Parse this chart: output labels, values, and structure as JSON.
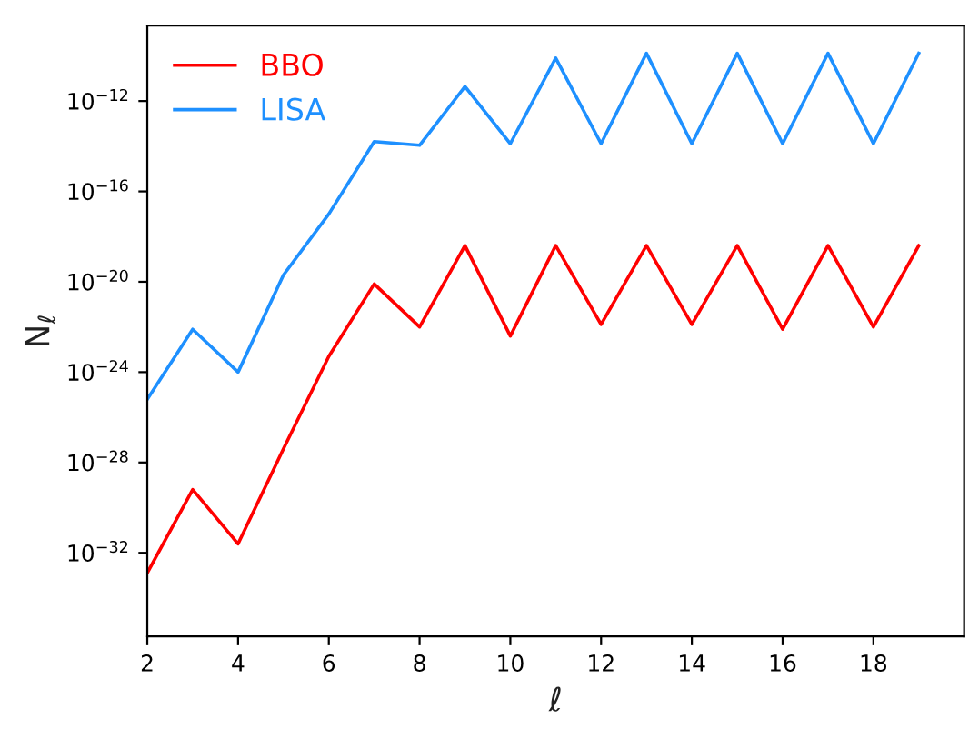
{
  "chart_data": {
    "type": "line",
    "xlabel": "ℓ",
    "ylabel": "N$_{ℓ}$",
    "x": [
      2,
      3,
      4,
      5,
      6,
      7,
      8,
      9,
      10,
      11,
      12,
      13,
      14,
      15,
      16,
      17,
      18,
      19
    ],
    "series": [
      {
        "name": "BBO",
        "color": "#ff0000",
        "values": [
          1.3e-33,
          6.3e-30,
          2.5e-32,
          4e-28,
          5e-24,
          8e-21,
          1e-22,
          4e-19,
          4e-23,
          4e-19,
          1.3e-22,
          4e-19,
          1.3e-22,
          4e-19,
          8e-23,
          4e-19,
          1e-22,
          4e-19
        ]
      },
      {
        "name": "LISA",
        "color": "#1e90ff",
        "values": [
          6.3e-26,
          7.9e-23,
          1e-24,
          2e-20,
          1e-17,
          1.6e-14,
          1.1e-14,
          4.4e-12,
          1.3e-14,
          8e-11,
          1.3e-14,
          1.3e-10,
          1.3e-14,
          1.3e-10,
          1.3e-14,
          1.3e-10,
          1.3e-14,
          1.3e-10
        ]
      }
    ],
    "log": "y",
    "xlim": [
      2,
      20
    ],
    "ylim": [
      2e-36,
      2.2e-09
    ],
    "xticks": [
      2,
      4,
      6,
      8,
      10,
      12,
      14,
      16,
      18
    ],
    "yticks": [
      {
        "value": 1e-32,
        "label": "10$^{−32}$"
      },
      {
        "value": 1e-28,
        "label": "10$^{−28}$"
      },
      {
        "value": 1e-24,
        "label": "10$^{−24}$"
      },
      {
        "value": 1e-20,
        "label": "10$^{−20}$"
      },
      {
        "value": 1e-16,
        "label": "10$^{−16}$"
      },
      {
        "value": 1e-12,
        "label": "10$^{−12}$"
      }
    ],
    "grid": false,
    "legend": "top left",
    "marker": "none",
    "line_style": "solid"
  }
}
